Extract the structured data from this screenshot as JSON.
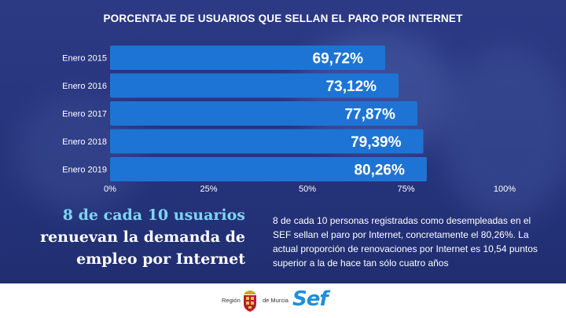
{
  "chart_data": {
    "type": "bar",
    "orientation": "horizontal",
    "title": "PORCENTAJE DE USUARIOS QUE SELLAN EL PARO POR INTERNET",
    "categories": [
      "Enero 2015",
      "Enero 2016",
      "Enero 2017",
      "Enero 2018",
      "Enero 2019"
    ],
    "values": [
      69.72,
      73.12,
      77.87,
      79.39,
      80.26
    ],
    "value_labels": [
      "69,72%",
      "73,12%",
      "77,87%",
      "79,39%",
      "80,26%"
    ],
    "x_ticks": [
      "0%",
      "25%",
      "50%",
      "75%",
      "100%"
    ],
    "xlim": [
      0,
      100
    ],
    "grid": false,
    "bar_color": "#1e74d4"
  },
  "headline": {
    "line1": "8 de cada 10 usuarios",
    "line2": "renuevan la demanda de",
    "line3": "empleo por Internet"
  },
  "body_text": "8 de cada 10 personas registradas como desempleadas en el SEF sellan el paro por Internet, concretamente el 80,26%. La actual proporción de renovaciones por Internet es 10,54 puntos superior a la de hace tan sólo cuatro años",
  "footer": {
    "region_label": "Región",
    "murcia_label": "de Murcia",
    "sef_logo": "Sef"
  },
  "colors": {
    "background": "#25337a",
    "headline_accent": "#7fd4f8",
    "sef_blue": "#1f8fd8"
  }
}
